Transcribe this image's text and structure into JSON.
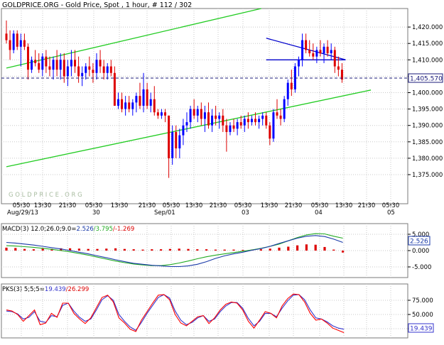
{
  "header": {
    "title": "GOLDPRICE.ORG - Gold Price, Spot , 1 hour, # 112 / 302"
  },
  "main_panel": {
    "watermark": "G O L D P R I C E . O R G",
    "price_label": "1,405.570"
  },
  "macd_panel": {
    "label_prefix": "MACD(3) 12.0;26.0;9.0=",
    "value_1": "2.526",
    "value_2": "/3.795",
    "value_3": "/-1.269",
    "current_value": "2.526",
    "yticks": [
      "5.000",
      "0.000",
      "-5.000"
    ]
  },
  "pks_panel": {
    "label_prefix": "PKS(3) 5;5;5=",
    "value_1": "19.439",
    "value_2": "/26.299",
    "current_value": "19.439",
    "yticks": [
      "75.000",
      "50.000",
      "25.000"
    ]
  },
  "colors": {
    "up": "#0000ff",
    "down": "#dd0000",
    "trend_green": "#22cc22",
    "triangle": "#0000cc",
    "grid": "#c8c8c8",
    "macd_line": "#1a3aa8",
    "macd_signal": "#22aa22",
    "pks_k": "#ff0000",
    "pks_d": "#3333cc"
  },
  "chart_data": [
    {
      "type": "candlestick",
      "title": "GOLDPRICE.ORG - Gold Price, Spot , 1 hour, # 112 / 302",
      "ylim": [
        1371,
        1425
      ],
      "yticks": [
        "1,420.000",
        "1,415.000",
        "1,410.000",
        "1,405.000",
        "1,400.000",
        "1,395.000",
        "1,390.000",
        "1,385.000",
        "1,380.000",
        "1,375.000"
      ],
      "x_labels_time": [
        "05:30",
        "13:30",
        "21:30",
        "05:30",
        "13:30",
        "21:30",
        "05:30",
        "13:30",
        "21:30",
        "05:30",
        "13:30",
        "21:30",
        "05:30",
        "13:30",
        "21:30",
        "05:30"
      ],
      "x_labels_date": [
        "Aug/29/13",
        "30",
        "Sep/01",
        "03",
        "04",
        "05"
      ],
      "current_price": 1405.57,
      "candles": [
        [
          1418,
          1422,
          1415,
          1416
        ],
        [
          1416,
          1419,
          1410,
          1413
        ],
        [
          1413,
          1419,
          1412,
          1418
        ],
        [
          1418,
          1419,
          1413,
          1414
        ],
        [
          1414,
          1418,
          1408,
          1416
        ],
        [
          1416,
          1418,
          1413,
          1414
        ],
        [
          1414,
          1415,
          1404,
          1407
        ],
        [
          1407,
          1411,
          1406,
          1410
        ],
        [
          1410,
          1413,
          1408,
          1409
        ],
        [
          1409,
          1412,
          1406,
          1407
        ],
        [
          1407,
          1412,
          1405,
          1411
        ],
        [
          1411,
          1413,
          1406,
          1408
        ],
        [
          1408,
          1411,
          1405,
          1407
        ],
        [
          1407,
          1411,
          1404,
          1410
        ],
        [
          1410,
          1413,
          1405,
          1407
        ],
        [
          1407,
          1412,
          1404,
          1410
        ],
        [
          1410,
          1412,
          1403,
          1405
        ],
        [
          1405,
          1410,
          1402,
          1408
        ],
        [
          1408,
          1413,
          1405,
          1410
        ],
        [
          1410,
          1413,
          1406,
          1408
        ],
        [
          1408,
          1411,
          1403,
          1405
        ],
        [
          1405,
          1408,
          1402,
          1406
        ],
        [
          1406,
          1409,
          1404,
          1408
        ],
        [
          1408,
          1411,
          1405,
          1407
        ],
        [
          1407,
          1409,
          1403,
          1406
        ],
        [
          1406,
          1412,
          1404,
          1410
        ],
        [
          1410,
          1413,
          1406,
          1408
        ],
        [
          1408,
          1410,
          1404,
          1406
        ],
        [
          1406,
          1409,
          1404,
          1408
        ],
        [
          1408,
          1410,
          1405,
          1406
        ],
        [
          1406,
          1408,
          1396,
          1396
        ],
        [
          1396,
          1400,
          1395,
          1398
        ],
        [
          1398,
          1400,
          1394,
          1395
        ],
        [
          1395,
          1399,
          1393,
          1397
        ],
        [
          1397,
          1399,
          1394,
          1395
        ],
        [
          1395,
          1398,
          1393,
          1397
        ],
        [
          1397,
          1400,
          1394,
          1399
        ],
        [
          1399,
          1403,
          1395,
          1396
        ],
        [
          1396,
          1406,
          1394,
          1401
        ],
        [
          1401,
          1403,
          1395,
          1396
        ],
        [
          1396,
          1400,
          1394,
          1398
        ],
        [
          1398,
          1402,
          1393,
          1394
        ],
        [
          1394,
          1395,
          1392,
          1393
        ],
        [
          1393,
          1395,
          1392,
          1394
        ],
        [
          1394,
          1395,
          1391,
          1393
        ],
        [
          1393,
          1393,
          1374,
          1380
        ],
        [
          1380,
          1390,
          1378,
          1388
        ],
        [
          1388,
          1390,
          1380,
          1383
        ],
        [
          1383,
          1389,
          1380,
          1387
        ],
        [
          1387,
          1392,
          1384,
          1390
        ],
        [
          1390,
          1394,
          1388,
          1391
        ],
        [
          1391,
          1396,
          1389,
          1395
        ],
        [
          1395,
          1398,
          1392,
          1393
        ],
        [
          1393,
          1396,
          1391,
          1395
        ],
        [
          1395,
          1397,
          1390,
          1392
        ],
        [
          1392,
          1396,
          1388,
          1394
        ],
        [
          1394,
          1397,
          1389,
          1390
        ],
        [
          1390,
          1395,
          1388,
          1393
        ],
        [
          1393,
          1396,
          1390,
          1392
        ],
        [
          1392,
          1394,
          1389,
          1393
        ],
        [
          1393,
          1395,
          1388,
          1390
        ],
        [
          1390,
          1392,
          1382,
          1388
        ],
        [
          1388,
          1391,
          1387,
          1390
        ],
        [
          1390,
          1392,
          1388,
          1389
        ],
        [
          1389,
          1392,
          1387,
          1391
        ],
        [
          1391,
          1393,
          1389,
          1390
        ],
        [
          1390,
          1393,
          1388,
          1392
        ],
        [
          1392,
          1394,
          1389,
          1391
        ],
        [
          1391,
          1393,
          1390,
          1392
        ],
        [
          1392,
          1394,
          1390,
          1391
        ],
        [
          1391,
          1393,
          1389,
          1392
        ],
        [
          1392,
          1394,
          1390,
          1393
        ],
        [
          1393,
          1394,
          1389,
          1390
        ],
        [
          1390,
          1391,
          1384,
          1386
        ],
        [
          1386,
          1395,
          1385,
          1394
        ],
        [
          1394,
          1398,
          1392,
          1393
        ],
        [
          1393,
          1395,
          1390,
          1392
        ],
        [
          1392,
          1399,
          1391,
          1398
        ],
        [
          1398,
          1404,
          1396,
          1403
        ],
        [
          1403,
          1407,
          1399,
          1401
        ],
        [
          1401,
          1409,
          1400,
          1408
        ],
        [
          1408,
          1411,
          1405,
          1410
        ],
        [
          1410,
          1418,
          1408,
          1416
        ],
        [
          1416,
          1418,
          1412,
          1413
        ],
        [
          1413,
          1416,
          1411,
          1412
        ],
        [
          1412,
          1415,
          1410,
          1411
        ],
        [
          1411,
          1414,
          1409,
          1413
        ],
        [
          1413,
          1416,
          1411,
          1412
        ],
        [
          1412,
          1415,
          1409,
          1414
        ],
        [
          1414,
          1416,
          1411,
          1412
        ],
        [
          1412,
          1415,
          1410,
          1413
        ],
        [
          1413,
          1414,
          1406,
          1408
        ],
        [
          1408,
          1411,
          1405,
          1407
        ],
        [
          1407,
          1409,
          1403,
          1404
        ]
      ],
      "trendlines": [
        {
          "color": "green",
          "from": [
            0,
            1407.5
          ],
          "to": [
            93,
            1431.4
          ]
        },
        {
          "color": "green",
          "from": [
            0,
            1377.4
          ],
          "to": [
            101,
            1400.8
          ]
        },
        {
          "color": "blue",
          "from": [
            72,
            1416.6
          ],
          "to": [
            94,
            1410
          ]
        },
        {
          "color": "blue",
          "from": [
            72,
            1410
          ],
          "to": [
            94,
            1410
          ]
        }
      ]
    },
    {
      "type": "line+bar",
      "title": "MACD(3) 12.0;26.0;9.0=2.526/3.795/-1.269",
      "ylim": [
        -7,
        7
      ],
      "yticks": [
        "5.000",
        "0.000",
        "-5.000"
      ],
      "series": [
        {
          "name": "MACD",
          "values": [
            2.5,
            2.3,
            2,
            1.7,
            1.3,
            0.9,
            0.5,
            0,
            -0.5,
            -1,
            -1.6,
            -2.2,
            -2.8,
            -3.4,
            -3.9,
            -4.2,
            -4.5,
            -4.7,
            -4.9,
            -4.9,
            -4.7,
            -4.2,
            -3.4,
            -2.4,
            -1.6,
            -1,
            -0.5,
            0.1,
            0.6,
            1.3,
            2.2,
            3,
            3.8,
            4.4,
            4.6,
            4.3,
            3.5,
            2.5
          ]
        },
        {
          "name": "Signal",
          "values": [
            1.5,
            1.4,
            1.2,
            1,
            0.7,
            0.4,
            0,
            -0.4,
            -0.9,
            -1.4,
            -2,
            -2.6,
            -3.2,
            -3.7,
            -4.1,
            -4.4,
            -4.6,
            -4.6,
            -4.3,
            -3.8,
            -3.2,
            -2.5,
            -1.9,
            -1.4,
            -1,
            -0.6,
            -0.2,
            0.2,
            0.7,
            1.3,
            2,
            3,
            4,
            4.8,
            5.2,
            5.1,
            4.4,
            3.8
          ]
        },
        {
          "name": "Histogram",
          "values": [
            0.9,
            0.8,
            0.5,
            0.4,
            0.6,
            0.5,
            0.7,
            0.7,
            0.6,
            0.5,
            0.5,
            0.6,
            0.7,
            0.5,
            0.4,
            0.3,
            0.4,
            0.4,
            0.5,
            0.6,
            0.5,
            0.4,
            0.4,
            0.3,
            0.3,
            0.3,
            0.2,
            0.3,
            0.4,
            0.6,
            0.9,
            1.2,
            1.6,
            1.9,
            1.8,
            1.1,
            0.3,
            -0.6
          ]
        }
      ]
    },
    {
      "type": "line",
      "title": "PKS(3) 5;5;5=19.439/26.299",
      "ylim": [
        5,
        95
      ],
      "yticks": [
        "75.000",
        "50.000",
        "25.000"
      ],
      "series": [
        {
          "name": "%K",
          "values": [
            58,
            56,
            50,
            38,
            48,
            58,
            32,
            35,
            52,
            45,
            70,
            70,
            52,
            42,
            34,
            44,
            62,
            80,
            84,
            72,
            44,
            35,
            24,
            20,
            40,
            55,
            70,
            84,
            85,
            76,
            50,
            35,
            30,
            38,
            46,
            48,
            34,
            44,
            58,
            68,
            72,
            70,
            58,
            38,
            26,
            40,
            55,
            52,
            44,
            65,
            78,
            86,
            85,
            72,
            52,
            40,
            42,
            35,
            26,
            22,
            18
          ]
        },
        {
          "name": "%D",
          "values": [
            56,
            55,
            51,
            42,
            45,
            55,
            38,
            36,
            48,
            46,
            66,
            70,
            56,
            45,
            38,
            42,
            58,
            76,
            83,
            75,
            50,
            38,
            28,
            22,
            36,
            52,
            66,
            80,
            85,
            79,
            56,
            40,
            32,
            36,
            44,
            48,
            38,
            42,
            55,
            65,
            71,
            71,
            61,
            43,
            30,
            38,
            52,
            52,
            46,
            61,
            74,
            84,
            85,
            76,
            58,
            44,
            42,
            37,
            30,
            26,
            24
          ]
        }
      ]
    }
  ]
}
